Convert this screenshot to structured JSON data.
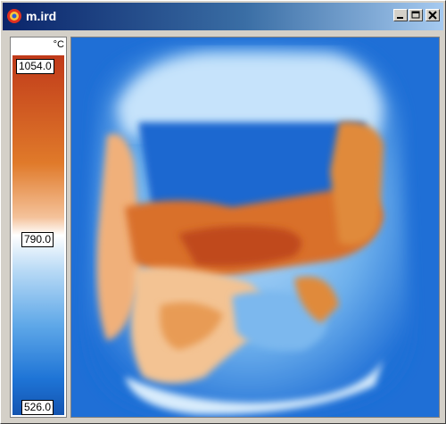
{
  "window": {
    "title": "m.ird"
  },
  "controls": {
    "minimize_icon": "minimize-icon",
    "restore_icon": "restore-icon",
    "close_icon": "close-icon"
  },
  "scale": {
    "unit": "°C",
    "max_label": "1054.0",
    "mid_label": "790.0",
    "min_label": "526.0"
  },
  "colors": {
    "hot": "#c03a1a",
    "warm": "#e07a2a",
    "neutral": "#ffffff",
    "cool": "#5fa8e8",
    "cold": "#1454b0"
  }
}
